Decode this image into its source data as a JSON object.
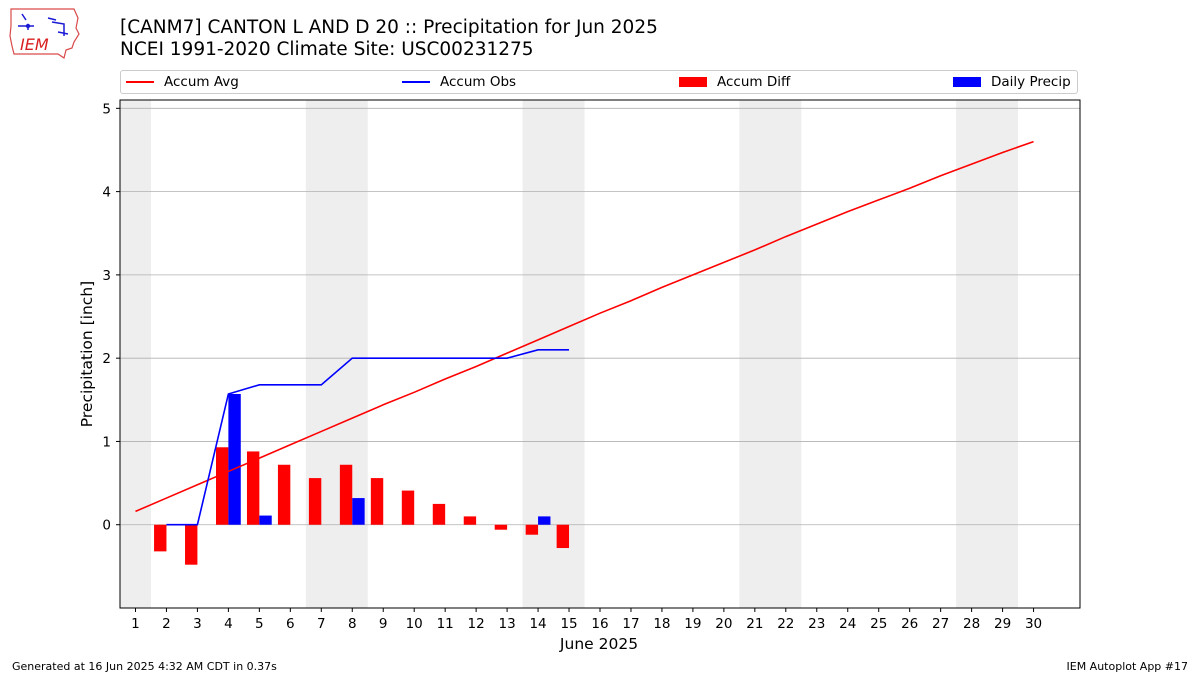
{
  "logo": {
    "text": "IEM"
  },
  "colors": {
    "avg": "#ff0000",
    "obs": "#0000ff",
    "diff": "#ff0000",
    "daily": "#0000ff",
    "shade": "#eeeeee",
    "grid": "#b0b0b0"
  },
  "chart_data": {
    "type": "bar",
    "title": "[CANM7] CANTON L AND D 20 :: Precipitation for Jun 2025",
    "subtitle": "NCEI 1991-2020 Climate Site: USC00231275",
    "xlabel": "June 2025",
    "ylabel": "Precipitation [inch]",
    "xlim": [
      0.5,
      31.5
    ],
    "ylim": [
      -1.0,
      5.1
    ],
    "x_ticks": [
      1,
      2,
      3,
      4,
      5,
      6,
      7,
      8,
      9,
      10,
      11,
      12,
      13,
      14,
      15,
      16,
      17,
      18,
      19,
      20,
      21,
      22,
      23,
      24,
      25,
      26,
      27,
      28,
      29,
      30
    ],
    "y_ticks": [
      0,
      1,
      2,
      3,
      4,
      5
    ],
    "grid": "y",
    "legend_position": "top",
    "weekend_shading": [
      [
        0.5,
        1.5
      ],
      [
        6.5,
        8.5
      ],
      [
        13.5,
        15.5
      ],
      [
        20.5,
        22.5
      ],
      [
        27.5,
        29.5
      ]
    ],
    "series": [
      {
        "name": "Accum Avg",
        "kind": "line",
        "x": [
          1,
          2,
          3,
          4,
          5,
          6,
          7,
          8,
          9,
          10,
          11,
          12,
          13,
          14,
          15,
          16,
          17,
          18,
          19,
          20,
          21,
          22,
          23,
          24,
          25,
          26,
          27,
          28,
          29,
          30
        ],
        "values": [
          0.16,
          0.32,
          0.48,
          0.64,
          0.8,
          0.96,
          1.12,
          1.28,
          1.44,
          1.59,
          1.75,
          1.9,
          2.06,
          2.22,
          2.38,
          2.54,
          2.69,
          2.85,
          3.0,
          3.15,
          3.3,
          3.46,
          3.61,
          3.76,
          3.9,
          4.04,
          4.19,
          4.33,
          4.47,
          4.6
        ]
      },
      {
        "name": "Accum Obs",
        "kind": "line",
        "x": [
          2,
          3,
          4,
          5,
          6,
          7,
          8,
          9,
          10,
          11,
          12,
          13,
          14,
          15
        ],
        "values": [
          0.0,
          0.0,
          1.57,
          1.68,
          1.68,
          1.68,
          2.0,
          2.0,
          2.0,
          2.0,
          2.0,
          2.0,
          2.1,
          2.1
        ]
      },
      {
        "name": "Accum Diff",
        "kind": "bar",
        "x": [
          2,
          3,
          4,
          5,
          6,
          7,
          8,
          9,
          10,
          11,
          12,
          13,
          14,
          15
        ],
        "values": [
          -0.32,
          -0.48,
          0.93,
          0.88,
          0.72,
          0.56,
          0.72,
          0.56,
          0.41,
          0.25,
          0.1,
          -0.06,
          -0.12,
          -0.28
        ]
      },
      {
        "name": "Daily Precip",
        "kind": "bar",
        "x": [
          4,
          5,
          8,
          14
        ],
        "values": [
          1.57,
          0.11,
          0.32,
          0.1
        ]
      }
    ]
  },
  "footer": {
    "left": "Generated at 16 Jun 2025 4:32 AM CDT in 0.37s",
    "right": "IEM Autoplot App #17"
  }
}
